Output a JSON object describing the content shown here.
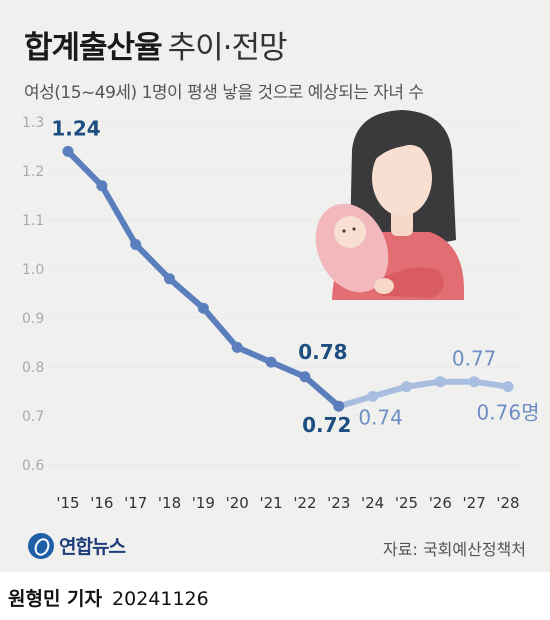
{
  "header": {
    "title_main": "합계출산율",
    "title_sub": "추이·전망",
    "subtitle": "여성(15~49세) 1명이 평생 낳을 것으로 예상되는 자녀 수"
  },
  "footer": {
    "logo_text": "연합뉴스",
    "source": "자료: 국회예산정책처",
    "reporter": "원형민 기자",
    "date": "20241126"
  },
  "colors": {
    "actual": "#5b7fbd",
    "projected": "#a8bde0",
    "label_dark": "#1d4e80",
    "label_light": "#6f8fc4"
  },
  "chart_data": {
    "type": "line",
    "title": "합계출산율 추이·전망",
    "subtitle": "여성(15~49세) 1명이 평생 낳을 것으로 예상되는 자녀 수",
    "categories": [
      "'15",
      "'16",
      "'17",
      "'18",
      "'19",
      "'20",
      "'21",
      "'22",
      "'23",
      "'24",
      "'25",
      "'26",
      "'27",
      "'28"
    ],
    "ylim": [
      0.6,
      1.3
    ],
    "yticks": [
      "0.6",
      "0.7",
      "0.8",
      "0.9",
      "1.0",
      "1.1",
      "1.2",
      "1.3"
    ],
    "grid": true,
    "series": [
      {
        "values": [
          1.24,
          1.17,
          1.05,
          0.98,
          0.92,
          0.84,
          0.81,
          0.78,
          0.72,
          null,
          null,
          null,
          null,
          null
        ]
      },
      {
        "values": [
          null,
          null,
          null,
          null,
          null,
          null,
          null,
          null,
          0.72,
          0.74,
          0.76,
          0.77,
          0.77,
          0.76
        ]
      }
    ],
    "annotations": [
      {
        "index": 0,
        "text": "1.24"
      },
      {
        "index": 7,
        "text": "0.78"
      },
      {
        "index": 8,
        "text": "0.72"
      },
      {
        "index": 9,
        "text": "0.74"
      },
      {
        "index": 12,
        "text": "0.77"
      },
      {
        "index": 13,
        "text": "0.76명"
      }
    ]
  }
}
